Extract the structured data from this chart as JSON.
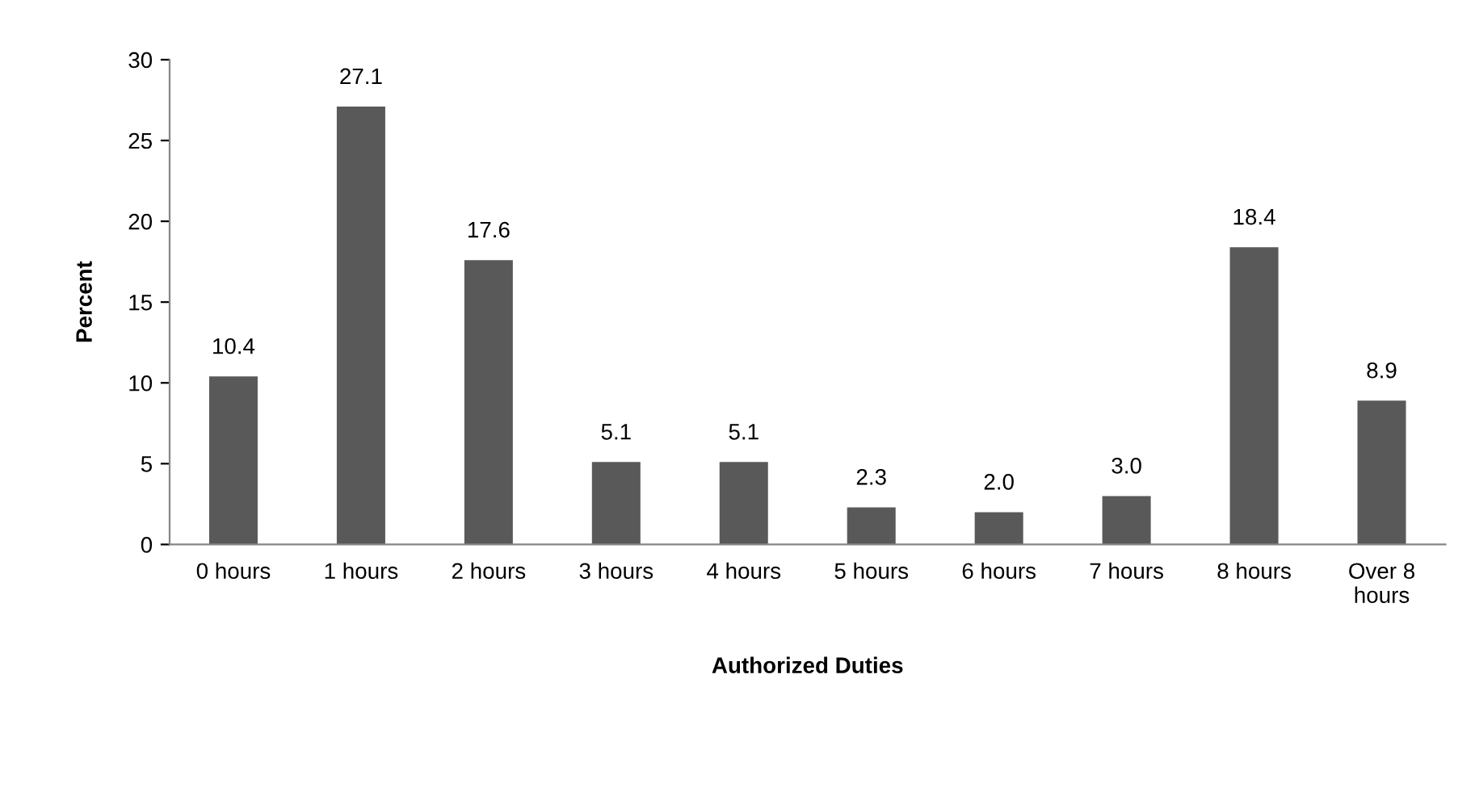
{
  "chart_data": {
    "type": "bar",
    "xlabel": "Authorized Duties",
    "ylabel": "Percent",
    "categories": [
      "0 hours",
      "1 hours",
      "2 hours",
      "3 hours",
      "4 hours",
      "5 hours",
      "6 hours",
      "7 hours",
      "8 hours",
      "Over 8\nhours"
    ],
    "values": [
      10.4,
      27.1,
      17.6,
      5.1,
      5.1,
      2.3,
      2.0,
      3.0,
      18.4,
      8.9
    ],
    "value_labels": [
      "10.4",
      "27.1",
      "17.6",
      "5.1",
      "5.1",
      "2.3",
      "2.0",
      "3.0",
      "18.4",
      "8.9"
    ],
    "color": "#595959",
    "ylim": [
      0,
      30
    ],
    "yticks": [
      0,
      5,
      10,
      15,
      20,
      25,
      30
    ],
    "grid": false,
    "legend": false
  }
}
